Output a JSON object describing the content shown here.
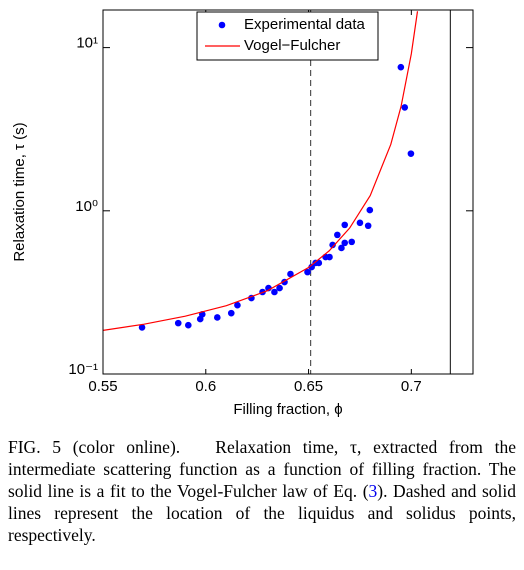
{
  "chart_data": {
    "type": "scatter",
    "xlabel": "Filling fraction, ϕ",
    "ylabel": "Relaxation time, τ (s)",
    "xlim": [
      0.55,
      0.73
    ],
    "xticks": [
      0.55,
      0.6,
      0.65,
      0.7
    ],
    "ylim": [
      0.1,
      17
    ],
    "log_y": true,
    "yticks": [
      {
        "value": 0.1,
        "label": "10⁻¹"
      },
      {
        "value": 1,
        "label": "10⁰"
      },
      {
        "value": 10,
        "label": "10¹"
      }
    ],
    "legend": "upper center",
    "vlines": [
      {
        "value": 0.651,
        "style": "dashed"
      },
      {
        "value": 0.719,
        "style": "solid"
      }
    ],
    "series": [
      {
        "name": "Experimental data",
        "color": "#0000ff",
        "style": "points",
        "x": [
          0.569,
          0.5866,
          0.5915,
          0.5973,
          0.5983,
          0.6056,
          0.6124,
          0.6154,
          0.6222,
          0.6276,
          0.6305,
          0.6334,
          0.6359,
          0.6383,
          0.6412,
          0.6495,
          0.6515,
          0.6534,
          0.655,
          0.6583,
          0.6602,
          0.6617,
          0.664,
          0.666,
          0.6676,
          0.6676,
          0.671,
          0.675,
          0.679,
          0.6798,
          0.6949,
          0.6968,
          0.6998
        ],
        "values": [
          0.193,
          0.205,
          0.199,
          0.217,
          0.232,
          0.222,
          0.236,
          0.264,
          0.292,
          0.318,
          0.336,
          0.318,
          0.336,
          0.366,
          0.41,
          0.421,
          0.452,
          0.479,
          0.479,
          0.521,
          0.521,
          0.618,
          0.712,
          0.592,
          0.636,
          0.82,
          0.645,
          0.844,
          0.81,
          1.01,
          7.59,
          4.3,
          2.24
        ]
      },
      {
        "name": "Vogel−Fulcher",
        "color": "#ff0000",
        "style": "line",
        "x": [
          0.55,
          0.57,
          0.59,
          0.61,
          0.63,
          0.65,
          0.66,
          0.67,
          0.68,
          0.69,
          0.695,
          0.7,
          0.703
        ],
        "values": [
          0.185,
          0.202,
          0.226,
          0.262,
          0.324,
          0.449,
          0.568,
          0.784,
          1.24,
          2.55,
          4.36,
          9.17,
          16.7
        ]
      }
    ]
  },
  "caption": [
    "FIG. 5 (color online).",
    "Relaxation time, τ, extracted from the intermediate scattering function as a function of filling fraction. The solid line is a fit to the Vogel-Fulcher law of Eq. (",
    "3",
    "). Dashed and solid lines represent the location of the liquidus and solidus points, respectively."
  ]
}
